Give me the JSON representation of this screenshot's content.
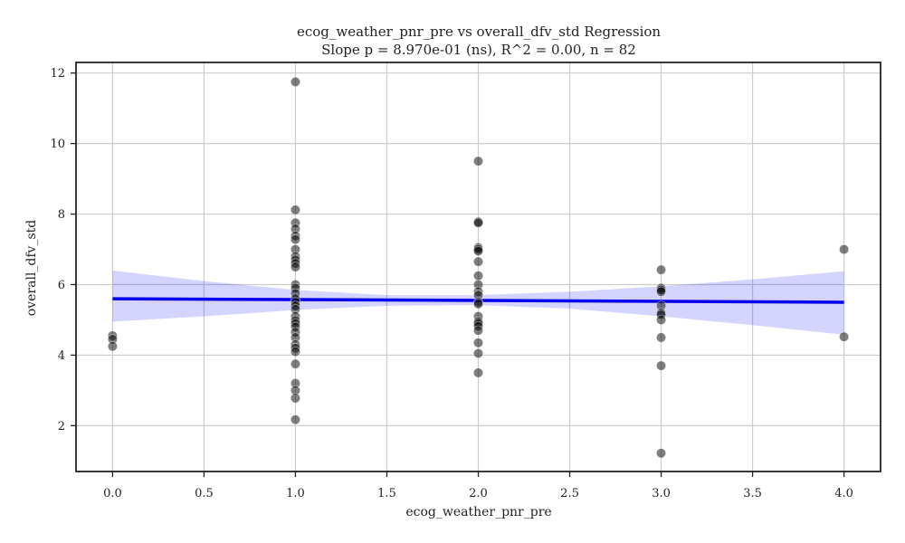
{
  "chart_data": {
    "type": "scatter",
    "title": "ecog_weather_pnr_pre vs overall_dfv_std Regression",
    "subtitle": "Slope p = 8.970e-01 (ns), R^2 = 0.00, n = 82",
    "xlabel": "ecog_weather_pnr_pre",
    "ylabel": "overall_dfv_std",
    "xlim": [
      -0.2,
      4.2
    ],
    "ylim": [
      0.7,
      12.3
    ],
    "x_ticks": [
      "0.0",
      "0.5",
      "1.0",
      "1.5",
      "2.0",
      "2.5",
      "3.0",
      "3.5",
      "4.0"
    ],
    "x_tick_values": [
      0,
      0.5,
      1,
      1.5,
      2,
      2.5,
      3,
      3.5,
      4
    ],
    "y_ticks": [
      "2",
      "4",
      "6",
      "8",
      "10",
      "12"
    ],
    "y_tick_values": [
      2,
      4,
      6,
      8,
      10,
      12
    ],
    "grid": true,
    "points": [
      {
        "x": 0,
        "y": 4.55
      },
      {
        "x": 0,
        "y": 4.45
      },
      {
        "x": 0,
        "y": 4.25
      },
      {
        "x": 1,
        "y": 11.75
      },
      {
        "x": 1,
        "y": 8.12
      },
      {
        "x": 1,
        "y": 7.75
      },
      {
        "x": 1,
        "y": 7.58
      },
      {
        "x": 1,
        "y": 7.38
      },
      {
        "x": 1,
        "y": 7.28
      },
      {
        "x": 1,
        "y": 7.0
      },
      {
        "x": 1,
        "y": 6.8
      },
      {
        "x": 1,
        "y": 6.7
      },
      {
        "x": 1,
        "y": 6.6
      },
      {
        "x": 1,
        "y": 6.5
      },
      {
        "x": 1,
        "y": 6.0
      },
      {
        "x": 1,
        "y": 5.9
      },
      {
        "x": 1,
        "y": 5.75
      },
      {
        "x": 1,
        "y": 5.6
      },
      {
        "x": 1,
        "y": 5.5
      },
      {
        "x": 1,
        "y": 5.4
      },
      {
        "x": 1,
        "y": 5.3
      },
      {
        "x": 1,
        "y": 5.1
      },
      {
        "x": 1,
        "y": 4.98
      },
      {
        "x": 1,
        "y": 4.9
      },
      {
        "x": 1,
        "y": 4.8
      },
      {
        "x": 1,
        "y": 4.65
      },
      {
        "x": 1,
        "y": 4.5
      },
      {
        "x": 1,
        "y": 4.3
      },
      {
        "x": 1,
        "y": 4.2
      },
      {
        "x": 1,
        "y": 4.1
      },
      {
        "x": 1,
        "y": 3.75
      },
      {
        "x": 1,
        "y": 3.2
      },
      {
        "x": 1,
        "y": 3.0
      },
      {
        "x": 1,
        "y": 2.78
      },
      {
        "x": 1,
        "y": 2.17
      },
      {
        "x": 2,
        "y": 9.5
      },
      {
        "x": 2,
        "y": 7.78
      },
      {
        "x": 2,
        "y": 7.75
      },
      {
        "x": 2,
        "y": 7.05
      },
      {
        "x": 2,
        "y": 7.0
      },
      {
        "x": 2,
        "y": 6.95
      },
      {
        "x": 2,
        "y": 6.65
      },
      {
        "x": 2,
        "y": 6.25
      },
      {
        "x": 2,
        "y": 6.0
      },
      {
        "x": 2,
        "y": 5.8
      },
      {
        "x": 2,
        "y": 5.7
      },
      {
        "x": 2,
        "y": 5.5
      },
      {
        "x": 2,
        "y": 5.45
      },
      {
        "x": 2,
        "y": 5.1
      },
      {
        "x": 2,
        "y": 4.95
      },
      {
        "x": 2,
        "y": 4.9
      },
      {
        "x": 2,
        "y": 4.82
      },
      {
        "x": 2,
        "y": 4.7
      },
      {
        "x": 2,
        "y": 4.35
      },
      {
        "x": 2,
        "y": 4.05
      },
      {
        "x": 2,
        "y": 3.5
      },
      {
        "x": 3,
        "y": 6.42
      },
      {
        "x": 3,
        "y": 5.9
      },
      {
        "x": 3,
        "y": 5.85
      },
      {
        "x": 3,
        "y": 5.8
      },
      {
        "x": 3,
        "y": 5.4
      },
      {
        "x": 3,
        "y": 5.2
      },
      {
        "x": 3,
        "y": 5.15
      },
      {
        "x": 3,
        "y": 5.0
      },
      {
        "x": 3,
        "y": 4.5
      },
      {
        "x": 3,
        "y": 3.7
      },
      {
        "x": 3,
        "y": 1.22
      },
      {
        "x": 4,
        "y": 7.0
      },
      {
        "x": 4,
        "y": 4.52
      }
    ],
    "regression_line": {
      "x": [
        0,
        4
      ],
      "y": [
        5.6,
        5.5
      ]
    },
    "confidence_band": {
      "x": [
        0,
        0.5,
        1,
        1.5,
        2,
        2.5,
        3,
        3.5,
        4
      ],
      "upper": [
        6.4,
        6.1,
        5.85,
        5.7,
        5.7,
        5.8,
        5.95,
        6.15,
        6.38
      ],
      "lower": [
        4.95,
        5.1,
        5.28,
        5.4,
        5.42,
        5.32,
        5.1,
        4.85,
        4.58
      ]
    },
    "colors": {
      "points": "#000000",
      "line": "#0000ee",
      "band": "#0000ff",
      "grid": "#cccccc",
      "axes": "#222222"
    }
  }
}
